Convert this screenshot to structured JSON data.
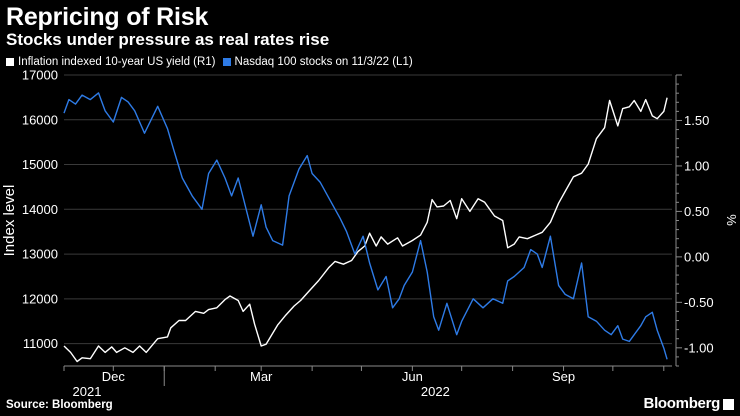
{
  "header": {
    "title": "Repricing of Risk",
    "subtitle": "Stocks under pressure as real rates rise"
  },
  "footer": {
    "source": "Source: Bloomberg",
    "brand": "Bloomberg"
  },
  "colors": {
    "background": "#000000",
    "series_white": "#ffffff",
    "series_blue": "#2e7be6",
    "grid": "#3a3a3a"
  },
  "chart_data": {
    "type": "line",
    "xlabel": "",
    "ylabel_left": "Index level",
    "ylabel_right": "%",
    "ylim_left": [
      10500,
      17000
    ],
    "ylim_right": [
      -1.2,
      2.0
    ],
    "yticks_left": [
      11000,
      12000,
      13000,
      14000,
      15000,
      16000,
      17000
    ],
    "yticks_right": [
      -1.0,
      -0.5,
      0.0,
      0.5,
      1.0,
      1.5
    ],
    "ytick_labels_right": [
      "-1.00",
      "-0.50",
      "0.00",
      "0.50",
      "1.00",
      "1.50"
    ],
    "xlim": [
      "2021-11-01",
      "2022-11-06"
    ],
    "x_ticks": [
      {
        "date": "2021-12-01",
        "label": "Dec"
      },
      {
        "date": "2022-03-01",
        "label": "Mar"
      },
      {
        "date": "2022-06-01",
        "label": "Jun"
      },
      {
        "date": "2022-09-01",
        "label": "Sep"
      }
    ],
    "year_labels": [
      {
        "date": "2021-11-15",
        "label": "2021"
      },
      {
        "date": "2022-06-15",
        "label": "2022"
      }
    ],
    "grid": "horizontal",
    "legend_position": "top-left",
    "series": [
      {
        "name": "Inflation indexed 10-year US yield (R1)",
        "axis": "right",
        "color": "#ffffff",
        "points": [
          [
            "2021-11-01",
            -0.98
          ],
          [
            "2021-11-05",
            -1.05
          ],
          [
            "2021-11-09",
            -1.15
          ],
          [
            "2021-11-12",
            -1.11
          ],
          [
            "2021-11-17",
            -1.12
          ],
          [
            "2021-11-22",
            -0.98
          ],
          [
            "2021-11-26",
            -1.05
          ],
          [
            "2021-11-30",
            -0.99
          ],
          [
            "2021-12-03",
            -1.05
          ],
          [
            "2021-12-08",
            -1.0
          ],
          [
            "2021-12-13",
            -1.05
          ],
          [
            "2021-12-17",
            -0.98
          ],
          [
            "2021-12-21",
            -1.05
          ],
          [
            "2021-12-28",
            -0.9
          ],
          [
            "2022-01-03",
            -0.88
          ],
          [
            "2022-01-05",
            -0.78
          ],
          [
            "2022-01-10",
            -0.7
          ],
          [
            "2022-01-14",
            -0.7
          ],
          [
            "2022-01-20",
            -0.6
          ],
          [
            "2022-01-25",
            -0.62
          ],
          [
            "2022-01-28",
            -0.58
          ],
          [
            "2022-02-02",
            -0.56
          ],
          [
            "2022-02-07",
            -0.47
          ],
          [
            "2022-02-10",
            -0.43
          ],
          [
            "2022-02-15",
            -0.48
          ],
          [
            "2022-02-18",
            -0.6
          ],
          [
            "2022-02-22",
            -0.52
          ],
          [
            "2022-02-25",
            -0.74
          ],
          [
            "2022-03-01",
            -0.98
          ],
          [
            "2022-03-04",
            -0.96
          ],
          [
            "2022-03-08",
            -0.84
          ],
          [
            "2022-03-11",
            -0.75
          ],
          [
            "2022-03-16",
            -0.64
          ],
          [
            "2022-03-21",
            -0.54
          ],
          [
            "2022-03-25",
            -0.48
          ],
          [
            "2022-03-30",
            -0.38
          ],
          [
            "2022-04-05",
            -0.26
          ],
          [
            "2022-04-11",
            -0.12
          ],
          [
            "2022-04-15",
            -0.05
          ],
          [
            "2022-04-20",
            -0.08
          ],
          [
            "2022-04-25",
            -0.04
          ],
          [
            "2022-04-29",
            0.06
          ],
          [
            "2022-05-03",
            0.12
          ],
          [
            "2022-05-06",
            0.26
          ],
          [
            "2022-05-10",
            0.12
          ],
          [
            "2022-05-13",
            0.22
          ],
          [
            "2022-05-17",
            0.14
          ],
          [
            "2022-05-23",
            0.21
          ],
          [
            "2022-05-26",
            0.12
          ],
          [
            "2022-06-01",
            0.18
          ],
          [
            "2022-06-06",
            0.24
          ],
          [
            "2022-06-10",
            0.38
          ],
          [
            "2022-06-13",
            0.63
          ],
          [
            "2022-06-16",
            0.55
          ],
          [
            "2022-06-20",
            0.56
          ],
          [
            "2022-06-24",
            0.62
          ],
          [
            "2022-06-28",
            0.42
          ],
          [
            "2022-07-01",
            0.64
          ],
          [
            "2022-07-06",
            0.5
          ],
          [
            "2022-07-11",
            0.64
          ],
          [
            "2022-07-15",
            0.6
          ],
          [
            "2022-07-21",
            0.45
          ],
          [
            "2022-07-26",
            0.4
          ],
          [
            "2022-07-29",
            0.1
          ],
          [
            "2022-08-02",
            0.14
          ],
          [
            "2022-08-05",
            0.22
          ],
          [
            "2022-08-10",
            0.2
          ],
          [
            "2022-08-15",
            0.24
          ],
          [
            "2022-08-19",
            0.27
          ],
          [
            "2022-08-24",
            0.38
          ],
          [
            "2022-08-29",
            0.59
          ],
          [
            "2022-09-02",
            0.72
          ],
          [
            "2022-09-07",
            0.88
          ],
          [
            "2022-09-12",
            0.92
          ],
          [
            "2022-09-16",
            1.02
          ],
          [
            "2022-09-21",
            1.3
          ],
          [
            "2022-09-26",
            1.42
          ],
          [
            "2022-09-29",
            1.72
          ],
          [
            "2022-10-04",
            1.44
          ],
          [
            "2022-10-07",
            1.63
          ],
          [
            "2022-10-11",
            1.65
          ],
          [
            "2022-10-14",
            1.72
          ],
          [
            "2022-10-18",
            1.6
          ],
          [
            "2022-10-21",
            1.73
          ],
          [
            "2022-10-25",
            1.55
          ],
          [
            "2022-10-28",
            1.52
          ],
          [
            "2022-11-01",
            1.6
          ],
          [
            "2022-11-03",
            1.75
          ]
        ]
      },
      {
        "name": "Nasdaq 100 stocks on 11/3/22 (L1)",
        "axis": "left",
        "color": "#2e7be6",
        "points": [
          [
            "2021-11-01",
            16150
          ],
          [
            "2021-11-04",
            16450
          ],
          [
            "2021-11-08",
            16350
          ],
          [
            "2021-11-12",
            16550
          ],
          [
            "2021-11-17",
            16450
          ],
          [
            "2021-11-22",
            16600
          ],
          [
            "2021-11-26",
            16200
          ],
          [
            "2021-12-01",
            15950
          ],
          [
            "2021-12-06",
            16500
          ],
          [
            "2021-12-10",
            16400
          ],
          [
            "2021-12-14",
            16200
          ],
          [
            "2021-12-20",
            15700
          ],
          [
            "2021-12-28",
            16300
          ],
          [
            "2022-01-03",
            15800
          ],
          [
            "2022-01-07",
            15300
          ],
          [
            "2022-01-12",
            14700
          ],
          [
            "2022-01-18",
            14300
          ],
          [
            "2022-01-24",
            14000
          ],
          [
            "2022-01-28",
            14800
          ],
          [
            "2022-02-02",
            15100
          ],
          [
            "2022-02-07",
            14700
          ],
          [
            "2022-02-11",
            14300
          ],
          [
            "2022-02-15",
            14700
          ],
          [
            "2022-02-24",
            13400
          ],
          [
            "2022-03-01",
            14100
          ],
          [
            "2022-03-04",
            13600
          ],
          [
            "2022-03-08",
            13300
          ],
          [
            "2022-03-14",
            13200
          ],
          [
            "2022-03-18",
            14300
          ],
          [
            "2022-03-24",
            14900
          ],
          [
            "2022-03-29",
            15200
          ],
          [
            "2022-04-01",
            14800
          ],
          [
            "2022-04-06",
            14600
          ],
          [
            "2022-04-12",
            14200
          ],
          [
            "2022-04-18",
            13800
          ],
          [
            "2022-04-22",
            13500
          ],
          [
            "2022-04-27",
            13000
          ],
          [
            "2022-05-02",
            13400
          ],
          [
            "2022-05-06",
            12800
          ],
          [
            "2022-05-11",
            12200
          ],
          [
            "2022-05-16",
            12500
          ],
          [
            "2022-05-20",
            11800
          ],
          [
            "2022-05-24",
            12000
          ],
          [
            "2022-05-27",
            12300
          ],
          [
            "2022-06-01",
            12600
          ],
          [
            "2022-06-06",
            13300
          ],
          [
            "2022-06-10",
            12600
          ],
          [
            "2022-06-14",
            11600
          ],
          [
            "2022-06-17",
            11300
          ],
          [
            "2022-06-22",
            11900
          ],
          [
            "2022-06-28",
            11200
          ],
          [
            "2022-07-01",
            11500
          ],
          [
            "2022-07-08",
            12000
          ],
          [
            "2022-07-14",
            11800
          ],
          [
            "2022-07-20",
            12000
          ],
          [
            "2022-07-26",
            11900
          ],
          [
            "2022-07-29",
            12400
          ],
          [
            "2022-08-02",
            12500
          ],
          [
            "2022-08-08",
            12700
          ],
          [
            "2022-08-12",
            13100
          ],
          [
            "2022-08-16",
            13000
          ],
          [
            "2022-08-19",
            12700
          ],
          [
            "2022-08-24",
            13400
          ],
          [
            "2022-08-29",
            12300
          ],
          [
            "2022-09-02",
            12100
          ],
          [
            "2022-09-07",
            12000
          ],
          [
            "2022-09-12",
            12800
          ],
          [
            "2022-09-16",
            11600
          ],
          [
            "2022-09-21",
            11500
          ],
          [
            "2022-09-26",
            11300
          ],
          [
            "2022-09-30",
            11200
          ],
          [
            "2022-10-04",
            11400
          ],
          [
            "2022-10-07",
            11100
          ],
          [
            "2022-10-11",
            11050
          ],
          [
            "2022-10-14",
            11200
          ],
          [
            "2022-10-18",
            11400
          ],
          [
            "2022-10-21",
            11600
          ],
          [
            "2022-10-25",
            11700
          ],
          [
            "2022-10-28",
            11300
          ],
          [
            "2022-11-01",
            10900
          ],
          [
            "2022-11-03",
            10650
          ]
        ]
      }
    ]
  }
}
